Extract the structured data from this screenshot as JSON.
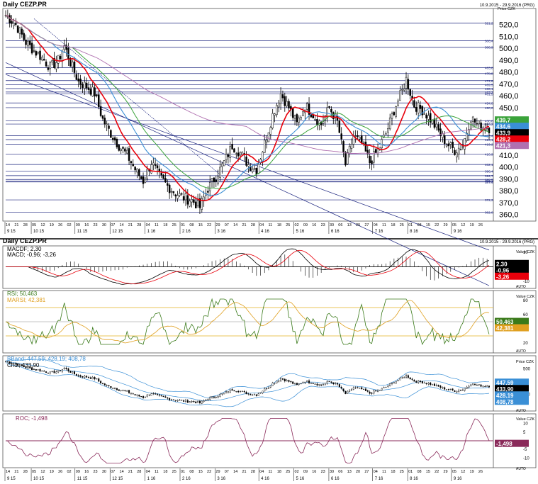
{
  "header": {
    "title": "Daily CEZP.PR",
    "range": "10.9.2015 - 29.9.2016 (PRG)",
    "title2": "Daily CEZP.PR",
    "range2": "10.9.2015 - 29.9.2016 (PRG)"
  },
  "colors": {
    "price": "#000000",
    "sma_red": "#e8000b",
    "sma_blue": "#3a8fd6",
    "sma_green": "#3aa33a",
    "sma_purple": "#b070b0",
    "macd": "#000000",
    "macd_signal": "#e8000b",
    "rsi": "#3a7a1a",
    "marsi": "#e0a020",
    "bband": "#3a8fd6",
    "roc": "#8a2a5a",
    "hline": "#1a237e"
  },
  "chart_data": [
    {
      "type": "candlestick",
      "name": "price-panel",
      "axis_unit": "Price CZK",
      "ylim": [
        358,
        530
      ],
      "yticks": [
        360,
        370,
        380,
        390,
        400,
        410,
        420,
        430,
        440,
        450,
        460,
        470,
        480,
        490,
        500,
        510,
        520
      ],
      "ytick_labels": [
        "360,0",
        "370,0",
        "380,0",
        "390,0",
        "400,0",
        "410,0",
        "420,0",
        "430,0",
        "440,0",
        "450,0",
        "460,0",
        "470,0",
        "480,0",
        "490,0",
        "500,0",
        "510,0",
        "520,0"
      ],
      "hlines": [
        521.2,
        506.4,
        500.9,
        483.8,
        478.8,
        472.8,
        469.5,
        466.1,
        463.2,
        461.5,
        454.0,
        450.0,
        438.8,
        436.2,
        426.4,
        423.1,
        419.2,
        410.9,
        402.1,
        396.4,
        392.7,
        389.5,
        388.2,
        387.4,
        372.3,
        362.0
      ],
      "hline_labels": [
        "521,2",
        "506,4",
        "500,9",
        "483,8",
        "478,8",
        "472,8",
        "469,5",
        "466,1",
        "463,2",
        "461,5",
        "454,0",
        "450,0",
        "438,8",
        "436,2",
        "426,4",
        "423,1",
        "419,2",
        "410,9",
        "402,1",
        "396,4",
        "392,7",
        "389,5",
        "388,2",
        "387,4",
        "372,3",
        "362,0"
      ],
      "badges": [
        {
          "label": "439,7",
          "value": 439.7,
          "color": "#3aa33a"
        },
        {
          "label": "434,6",
          "value": 434.6,
          "color": "#3a8fd6"
        },
        {
          "label": "433,9",
          "value": 433.9,
          "color": "#000000"
        },
        {
          "label": "428,2",
          "value": 428.2,
          "color": "#e8000b"
        },
        {
          "label": "421,3",
          "value": 421.3,
          "color": "#b070b0"
        }
      ],
      "anchors": [
        [
          0,
          528
        ],
        [
          5,
          520
        ],
        [
          10,
          505
        ],
        [
          14,
          498
        ],
        [
          18,
          492
        ],
        [
          22,
          484
        ],
        [
          26,
          490
        ],
        [
          29,
          502
        ],
        [
          32,
          488
        ],
        [
          36,
          472
        ],
        [
          40,
          468
        ],
        [
          44,
          462
        ],
        [
          48,
          440
        ],
        [
          52,
          428
        ],
        [
          56,
          418
        ],
        [
          60,
          410
        ],
        [
          64,
          398
        ],
        [
          68,
          388
        ],
        [
          72,
          404
        ],
        [
          76,
          392
        ],
        [
          80,
          384
        ],
        [
          84,
          378
        ],
        [
          88,
          374
        ],
        [
          92,
          372
        ],
        [
          96,
          366
        ],
        [
          100,
          382
        ],
        [
          104,
          392
        ],
        [
          108,
          404
        ],
        [
          112,
          418
        ],
        [
          116,
          412
        ],
        [
          120,
          402
        ],
        [
          124,
          398
        ],
        [
          128,
          420
        ],
        [
          132,
          444
        ],
        [
          136,
          462
        ],
        [
          140,
          450
        ],
        [
          144,
          436
        ],
        [
          148,
          452
        ],
        [
          152,
          444
        ],
        [
          156,
          436
        ],
        [
          160,
          450
        ],
        [
          164,
          438
        ],
        [
          168,
          402
        ],
        [
          172,
          426
        ],
        [
          176,
          420
        ],
        [
          180,
          404
        ],
        [
          184,
          414
        ],
        [
          188,
          428
        ],
        [
          192,
          448
        ],
        [
          196,
          464
        ],
        [
          198,
          474
        ],
        [
          202,
          452
        ],
        [
          206,
          448
        ],
        [
          210,
          440
        ],
        [
          214,
          430
        ],
        [
          218,
          420
        ],
        [
          222,
          414
        ],
        [
          226,
          418
        ],
        [
          230,
          442
        ],
        [
          233,
          436
        ],
        [
          236,
          434
        ]
      ],
      "overlays": [
        {
          "name": "SMA red",
          "value": 428.2
        },
        {
          "name": "SMA blue",
          "value": 434.6
        },
        {
          "name": "SMA green",
          "value": 439.7
        },
        {
          "name": "SMA purple",
          "value": 421.3
        }
      ]
    },
    {
      "type": "line",
      "name": "MACD",
      "legend": [
        "MACDF; 2,30",
        "MACD; -0,96; -3,26"
      ],
      "axis_unit": "Value CZK",
      "ylim": [
        -14,
        12
      ],
      "yticks": [
        10,
        -10
      ],
      "ytick_labels": [
        "10",
        "-10"
      ],
      "badges": [
        {
          "label": "2,30",
          "value": 2.3,
          "color": "#000000"
        },
        {
          "label": "-0,96",
          "value": -0.96,
          "color": "#000000"
        },
        {
          "label": "-3,26",
          "value": -3.26,
          "color": "#e8000b"
        }
      ]
    },
    {
      "type": "line",
      "name": "RSI",
      "legend": [
        "RSI; 50,463",
        "MARSI; 42,381"
      ],
      "axis_unit": "Value CZK",
      "ylim": [
        10,
        90
      ],
      "yticks": [
        80,
        60,
        40,
        20
      ],
      "ytick_labels": [
        "80",
        "60",
        "40",
        "20"
      ],
      "hlines": [
        70,
        30
      ],
      "badges": [
        {
          "label": "50,463",
          "value": 50.463,
          "color": "#3a7a1a"
        },
        {
          "label": "42,381",
          "value": 42.381,
          "color": "#e0a020"
        }
      ]
    },
    {
      "type": "candlestick",
      "name": "BBand",
      "legend": [
        "BBand; 447,59; 428,19; 408,78",
        "Cndl; 433,90"
      ],
      "axis_unit": "Price CZK",
      "ylim": [
        340,
        540
      ],
      "yticks": [
        500,
        400
      ],
      "ytick_labels": [
        "500",
        "400"
      ],
      "badges": [
        {
          "label": "447,59",
          "value": 447.59,
          "color": "#3a8fd6"
        },
        {
          "label": "433,90",
          "value": 433.9,
          "color": "#000000"
        },
        {
          "label": "428,19",
          "value": 428.19,
          "color": "#3a8fd6"
        },
        {
          "label": "408,78",
          "value": 408.78,
          "color": "#3a8fd6"
        }
      ]
    },
    {
      "type": "line",
      "name": "ROC",
      "legend": [
        "ROC; -1,498"
      ],
      "axis_unit": "Value CZK",
      "ylim": [
        -14,
        14
      ],
      "yticks": [
        10,
        5,
        -5,
        -10
      ],
      "ytick_labels": [
        "10",
        "5",
        "-5",
        "-10"
      ],
      "hlines": [
        0
      ],
      "badges": [
        {
          "label": "-1,498",
          "value": -1.498,
          "color": "#8a2a5a"
        }
      ]
    }
  ],
  "xaxis": {
    "days": [
      "14",
      "21",
      "28",
      "05",
      "12",
      "19",
      "26",
      "02",
      "09",
      "16",
      "23",
      "30",
      "07",
      "14",
      "21",
      "28",
      "04",
      "11",
      "18",
      "25",
      "01",
      "08",
      "15",
      "22",
      "29",
      "07",
      "14",
      "21",
      "28",
      "04",
      "11",
      "18",
      "25",
      "02",
      "09",
      "16",
      "23",
      "30",
      "06",
      "13",
      "20",
      "27",
      "04",
      "11",
      "18",
      "25",
      "01",
      "08",
      "15",
      "22",
      "29",
      "05",
      "12",
      "19",
      "26"
    ],
    "months": [
      "9 15",
      "10 15",
      "11 15",
      "12 15",
      "1 16",
      "2 16",
      "3 16",
      "4 16",
      "5 16",
      "6 16",
      "7 16",
      "8 16",
      "9 16"
    ]
  },
  "aux": {
    "auto": "AUTO"
  }
}
